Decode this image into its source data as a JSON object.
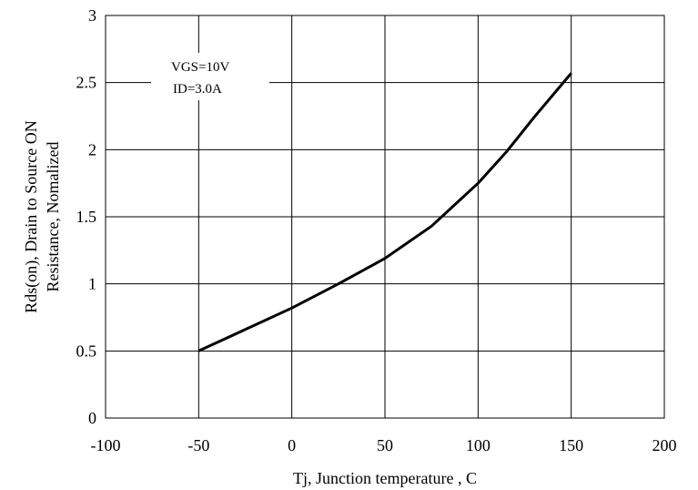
{
  "chart_data": {
    "type": "line",
    "title": "",
    "xlabel": "Tj, Junction temperature , C",
    "ylabel_line1": "Rds(on), Drain to Source ON",
    "ylabel_line2": "Resistance, Nomalized",
    "xlim": [
      -100,
      200
    ],
    "ylim": [
      0,
      3
    ],
    "x_ticks": [
      -100,
      -50,
      0,
      50,
      100,
      150,
      200
    ],
    "y_ticks": [
      0,
      0.5,
      1,
      1.5,
      2,
      2.5,
      3
    ],
    "x_tick_labels": [
      "-100",
      "-50",
      "0",
      "50",
      "100",
      "150",
      "200"
    ],
    "y_tick_labels": [
      "0",
      "0.5",
      "1",
      "1.5",
      "2",
      "2.5",
      "3"
    ],
    "grid": true,
    "annotations": [
      "VGS=10V",
      "ID=3.0A"
    ],
    "series": [
      {
        "x": [
          -50,
          -25,
          0,
          25,
          50,
          75,
          100,
          115,
          130,
          150
        ],
        "y": [
          0.5,
          0.66,
          0.82,
          1.0,
          1.19,
          1.43,
          1.75,
          1.98,
          2.24,
          2.57
        ]
      }
    ]
  }
}
